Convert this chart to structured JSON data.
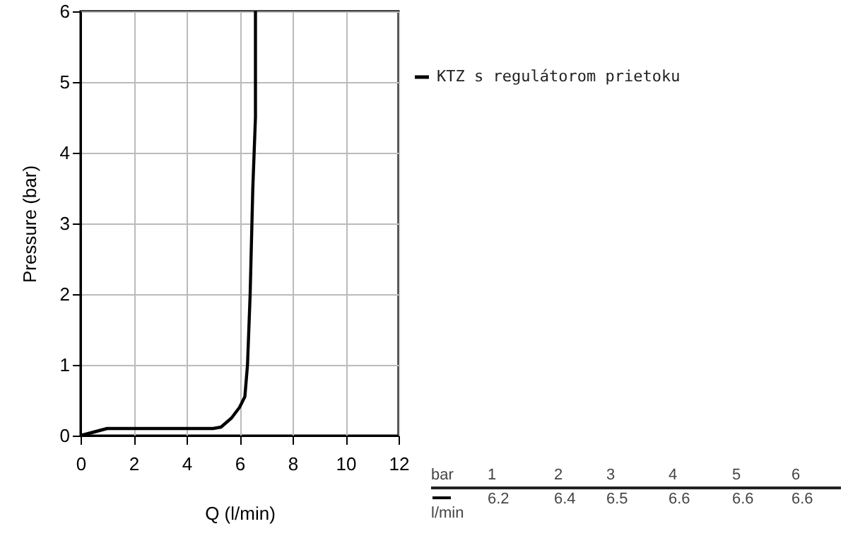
{
  "chart_data": {
    "type": "line",
    "xlabel": "Q (l/min)",
    "ylabel": "Pressure (bar)",
    "x": [
      0,
      0.5,
      1,
      2,
      3,
      4,
      5,
      5.3,
      5.7,
      6,
      6.2,
      6.3,
      6.4,
      6.5,
      6.6,
      6.6
    ],
    "series": [
      {
        "name": "KTZ s regulátorom prietoku",
        "color": "#000000",
        "values": [
          0,
          0.05,
          0.1,
          0.1,
          0.1,
          0.1,
          0.1,
          0.12,
          0.25,
          0.4,
          0.55,
          1,
          2,
          3.5,
          4.5,
          6
        ]
      }
    ],
    "xlim": [
      0,
      12
    ],
    "xticks": [
      0,
      2,
      4,
      6,
      8,
      10,
      12
    ],
    "ylim": [
      0,
      6
    ],
    "yticks": [
      0,
      1,
      2,
      3,
      4,
      5,
      6
    ],
    "grid": true,
    "legend": "top right",
    "line_style": "solid",
    "annotations": [
      "bar",
      "1",
      "2",
      "3",
      "4",
      "5",
      "6",
      "l/min",
      "6.2",
      "6.4",
      "6.5",
      "6.6",
      "6.6",
      "6.6"
    ]
  }
}
